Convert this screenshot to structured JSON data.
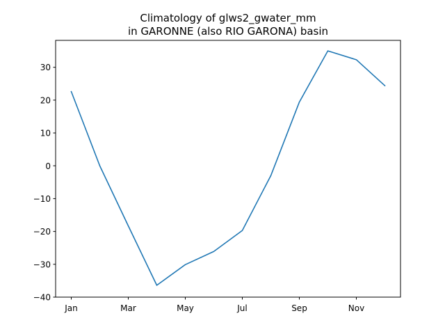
{
  "chart_data": {
    "type": "line",
    "title_line1": "Climatology of glws2_gwater_mm",
    "title_line2": "in GARONNE (also RIO GARONA) basin",
    "xlabel": "",
    "ylabel": "",
    "x": [
      "Jan",
      "Feb",
      "Mar",
      "Apr",
      "May",
      "Jun",
      "Jul",
      "Aug",
      "Sep",
      "Oct",
      "Nov",
      "Dec"
    ],
    "x_tick_labels": [
      "Jan",
      "Mar",
      "May",
      "Jul",
      "Sep",
      "Nov"
    ],
    "y_ticks": [
      -40,
      -30,
      -20,
      -10,
      0,
      10,
      20,
      30
    ],
    "y_tick_labels": [
      "−40",
      "−30",
      "−20",
      "−10",
      "0",
      "10",
      "20",
      "30"
    ],
    "ylim": [
      -40,
      38.2
    ],
    "series": [
      {
        "values": [
          22.6,
          0.0,
          -18.3,
          -36.4,
          -30.1,
          -26.1,
          -19.7,
          -3.0,
          19.4,
          35.0,
          32.3,
          24.4
        ],
        "color": "#1f77b4"
      }
    ],
    "grid": false,
    "legend": "none"
  }
}
